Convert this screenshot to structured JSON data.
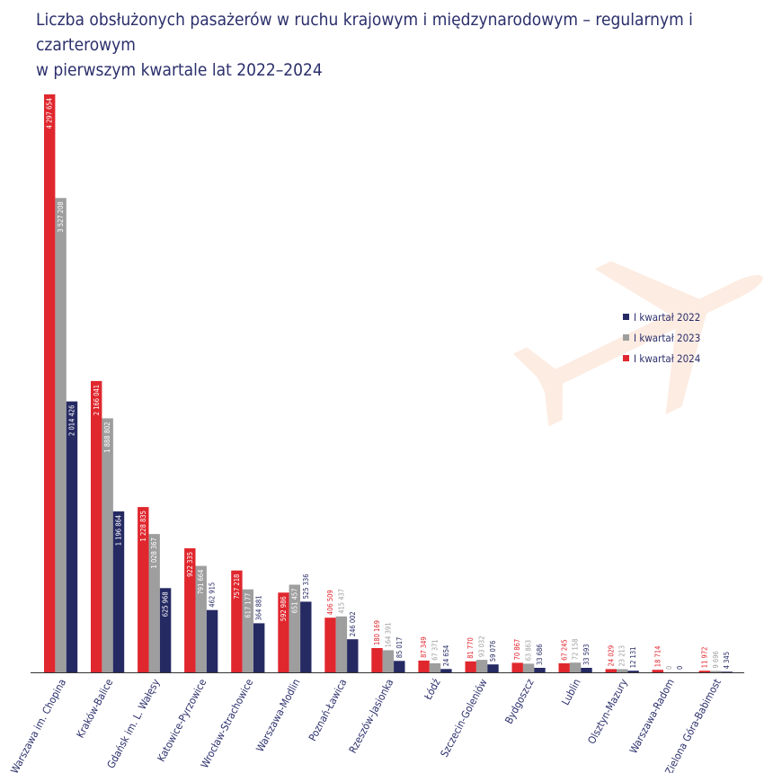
{
  "title_line1": "Liczba obsłużonych pasażerów w ruchu krajowym i międzynarodowym – regularnym i czarterowym",
  "title_line2": "w pierwszym kwartale lat 2022–2024",
  "colors": {
    "2022": "#252a63",
    "2023": "#9e9e9e",
    "2024": "#e0272e",
    "plane": "#fdece2",
    "axis": "#333333"
  },
  "decor_icon": "airplane-icon",
  "chart_data": {
    "type": "bar",
    "title": "",
    "xlabel": "",
    "ylabel": "",
    "grid": false,
    "legend_position": "right",
    "categories": [
      "Warszawa im. Chopina",
      "Kraków-Balice",
      "Gdańsk im. L. Wałęsy",
      "Katowice-Pyrzowice",
      "Wrocław-Strachowice",
      "Warszawa-Modlin",
      "Poznań-Ławica",
      "Rzeszów-Jasionka",
      "Łódź",
      "Szczecin-Goleniów",
      "Bydgoszcz",
      "Lublin",
      "Olsztyn-Mazury",
      "Warszawa-Radom",
      "Zielona Góra-Babimost"
    ],
    "series": [
      {
        "name": "I kwartał 2024",
        "values": [
          4297654,
          2166041,
          1228835,
          922335,
          757218,
          592986,
          406509,
          180169,
          87349,
          81770,
          70867,
          67245,
          24029,
          18714,
          11972
        ],
        "labels": [
          "4 297 654",
          "2 166 041",
          "1 228 835",
          "922 335",
          "757 218",
          "592 986",
          "406 509",
          "180 169",
          "87 349",
          "81 770",
          "70 867",
          "67 245",
          "24 029",
          "18 714",
          "11 972"
        ]
      },
      {
        "name": "I kwartał 2023",
        "values": [
          3527208,
          1888802,
          1028367,
          791664,
          617177,
          651457,
          415437,
          164391,
          67371,
          93032,
          63863,
          72158,
          23213,
          0,
          9696
        ],
        "labels": [
          "3 527 208",
          "1 888 802",
          "1 028 367",
          "791 664",
          "617 177",
          "651 457",
          "415 437",
          "164 391",
          "67 371",
          "93 032",
          "63 863",
          "72 158",
          "23 213",
          "0",
          "9 696"
        ]
      },
      {
        "name": "I kwartał 2022",
        "values": [
          2014426,
          1196864,
          625968,
          462915,
          364881,
          525336,
          246002,
          85017,
          24654,
          59076,
          33686,
          33593,
          12131,
          0,
          4345
        ],
        "labels": [
          "2 014 426",
          "1 196 864",
          "625 968",
          "462 915",
          "364 881",
          "525 336",
          "246 002",
          "85 017",
          "24 654",
          "59 076",
          "33 686",
          "33 593",
          "12 131",
          "0",
          "4 345"
        ]
      }
    ],
    "legend": [
      {
        "name": "I kwartał 2022",
        "color": "#252a63"
      },
      {
        "name": "I kwartał 2023",
        "color": "#9e9e9e"
      },
      {
        "name": "I kwartał 2024",
        "color": "#e0272e"
      }
    ]
  }
}
